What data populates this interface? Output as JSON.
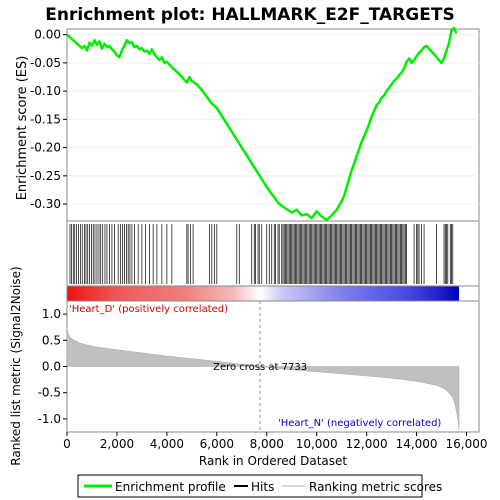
{
  "title": "Enrichment plot: HALLMARK_E2F_TARGETS",
  "top_panel": {
    "ylabel": "Enrichment score (ES)",
    "yticks": [
      "0.00",
      "-0.05",
      "-0.10",
      "-0.15",
      "-0.20",
      "-0.25",
      "-0.30"
    ]
  },
  "bottom_panel": {
    "ylabel": "Ranked list metric (Signal2Noise)",
    "yticks": [
      "1.0",
      "0.5",
      "0.0",
      "-0.5",
      "-1.0"
    ],
    "xlabel": "Rank in Ordered Dataset",
    "xticks": [
      "0",
      "2,000",
      "4,000",
      "6,000",
      "8,000",
      "10,000",
      "12,000",
      "14,000",
      "16,000"
    ],
    "zero_cross_label": "Zero cross at 7733",
    "positive_label": "'Heart_D' (positively correlated)",
    "negative_label": "'Heart_N' (negatively correlated)"
  },
  "legend": {
    "items": [
      "Enrichment profile",
      "Hits",
      "Ranking metric scores"
    ]
  },
  "colors": {
    "profile": "#00ee00",
    "hits": "#000000",
    "metric": "#c0c0c0",
    "positive_label": "#cc0000",
    "negative_label": "#0000cc"
  },
  "chart_data": {
    "type": "line",
    "n_genes": 15700,
    "zero_cross": 7733,
    "es_ylim": [
      -0.33,
      0.01
    ],
    "metric_ylim": [
      -1.25,
      1.25
    ],
    "xlim": [
      0,
      16500
    ],
    "enrichment_profile": {
      "x": [
        0,
        300,
        500,
        600,
        700,
        800,
        900,
        1000,
        1100,
        1200,
        1300,
        1400,
        1500,
        1600,
        1700,
        1800,
        1900,
        2000,
        2100,
        2200,
        2300,
        2400,
        2500,
        2600,
        2700,
        2800,
        2900,
        3000,
        3100,
        3200,
        3300,
        3400,
        3500,
        3600,
        3700,
        3800,
        3900,
        4000,
        4200,
        4400,
        4600,
        4800,
        4900,
        5000,
        5200,
        5400,
        5600,
        5800,
        6000,
        6500,
        7000,
        7500,
        8000,
        8500,
        9000,
        9200,
        9400,
        9600,
        9800,
        10000,
        10200,
        10400,
        10600,
        10800,
        11000,
        11100,
        11200,
        11300,
        11400,
        11500,
        11600,
        11700,
        11800,
        11900,
        12000,
        12100,
        12200,
        12300,
        12400,
        12500,
        12600,
        12700,
        12800,
        12900,
        13000,
        13100,
        13200,
        13300,
        13400,
        13500,
        13600,
        13700,
        13800,
        13900,
        14000,
        14100,
        14200,
        14300,
        14400,
        14500,
        14600,
        14700,
        14800,
        14900,
        15000,
        15100,
        15200,
        15300,
        15400,
        15500,
        15600
      ],
      "y": [
        0.0,
        -0.012,
        -0.02,
        -0.024,
        -0.02,
        -0.028,
        -0.014,
        -0.02,
        -0.01,
        -0.018,
        -0.012,
        -0.025,
        -0.016,
        -0.022,
        -0.02,
        -0.026,
        -0.03,
        -0.037,
        -0.04,
        -0.028,
        -0.02,
        -0.01,
        -0.015,
        -0.013,
        -0.022,
        -0.02,
        -0.026,
        -0.024,
        -0.03,
        -0.028,
        -0.034,
        -0.026,
        -0.035,
        -0.04,
        -0.045,
        -0.04,
        -0.05,
        -0.048,
        -0.058,
        -0.066,
        -0.075,
        -0.085,
        -0.075,
        -0.082,
        -0.088,
        -0.098,
        -0.11,
        -0.122,
        -0.13,
        -0.165,
        -0.2,
        -0.235,
        -0.27,
        -0.3,
        -0.315,
        -0.31,
        -0.32,
        -0.318,
        -0.325,
        -0.313,
        -0.322,
        -0.328,
        -0.32,
        -0.31,
        -0.295,
        -0.285,
        -0.27,
        -0.255,
        -0.24,
        -0.228,
        -0.215,
        -0.203,
        -0.19,
        -0.18,
        -0.17,
        -0.158,
        -0.145,
        -0.135,
        -0.125,
        -0.12,
        -0.112,
        -0.108,
        -0.1,
        -0.094,
        -0.088,
        -0.082,
        -0.078,
        -0.072,
        -0.067,
        -0.06,
        -0.048,
        -0.042,
        -0.05,
        -0.045,
        -0.038,
        -0.032,
        -0.028,
        -0.022,
        -0.02,
        -0.025,
        -0.03,
        -0.035,
        -0.04,
        -0.045,
        -0.05,
        -0.042,
        -0.028,
        -0.015,
        0.008,
        0.012,
        0.002
      ]
    },
    "hits": [
      120,
      180,
      250,
      310,
      380,
      460,
      540,
      610,
      700,
      760,
      830,
      900,
      980,
      1050,
      1120,
      1200,
      1280,
      1350,
      1430,
      1520,
      1600,
      1700,
      1800,
      1900,
      2050,
      2150,
      2230,
      2300,
      2380,
      2450,
      2520,
      2600,
      2700,
      2850,
      3000,
      3150,
      3300,
      3450,
      3600,
      3800,
      4000,
      4200,
      4800,
      4850,
      4950,
      5050,
      5700,
      5800,
      5900,
      6000,
      6800,
      6900,
      7400,
      7500,
      7550,
      7650,
      7700,
      7800,
      8000,
      8100,
      8200,
      8300,
      8350,
      8450,
      8500,
      8600,
      8650,
      8700,
      8750,
      8800,
      8850,
      8900,
      8950,
      9000,
      9050,
      9100,
      9150,
      9200,
      9250,
      9300,
      9350,
      9400,
      9450,
      9500,
      9550,
      9600,
      9650,
      9700,
      9750,
      9800,
      9850,
      9900,
      9950,
      10000,
      10050,
      10100,
      10150,
      10200,
      10250,
      10300,
      10350,
      10400,
      10450,
      10500,
      10550,
      10600,
      10650,
      10700,
      10750,
      10800,
      10850,
      10900,
      10950,
      11000,
      11050,
      11100,
      11150,
      11200,
      11250,
      11300,
      11350,
      11400,
      11450,
      11500,
      11550,
      11600,
      11650,
      11700,
      11750,
      11800,
      11850,
      11900,
      11950,
      12000,
      12050,
      12100,
      12150,
      12200,
      12250,
      12300,
      12350,
      12400,
      12450,
      12500,
      12550,
      12600,
      12650,
      12700,
      12750,
      12800,
      12850,
      12900,
      12950,
      13000,
      13050,
      13100,
      13150,
      13200,
      13250,
      13300,
      13350,
      13400,
      13450,
      13500,
      13550,
      13600,
      13900,
      14000,
      14050,
      14100,
      14200,
      14300,
      14800,
      15100,
      15150,
      15200,
      15250,
      15350,
      15400,
      15450
    ],
    "metric_curve": {
      "x": [
        0,
        50,
        150,
        300,
        500,
        800,
        1200,
        2000,
        3000,
        4000,
        5000,
        6000,
        7000,
        7733,
        8500,
        9500,
        10500,
        11500,
        12500,
        13500,
        14200,
        14800,
        15100,
        15300,
        15450,
        15550,
        15650,
        15700
      ],
      "y": [
        0.75,
        0.62,
        0.55,
        0.5,
        0.45,
        0.41,
        0.37,
        0.32,
        0.26,
        0.2,
        0.15,
        0.1,
        0.04,
        0.0,
        -0.04,
        -0.08,
        -0.12,
        -0.16,
        -0.2,
        -0.25,
        -0.3,
        -0.36,
        -0.42,
        -0.5,
        -0.6,
        -0.75,
        -1.0,
        -1.2
      ]
    }
  }
}
